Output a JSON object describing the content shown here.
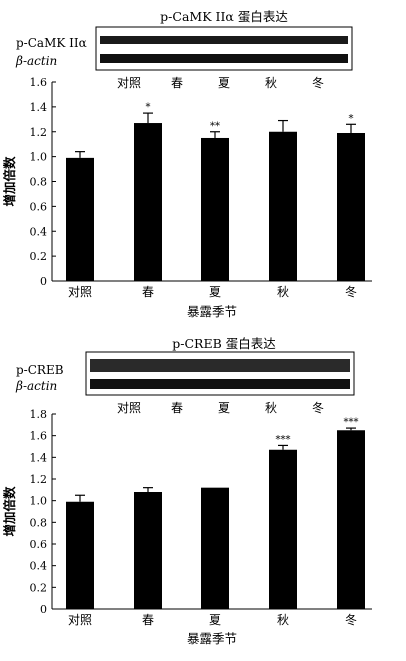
{
  "chart_data": [
    {
      "type": "bar",
      "title": "p-CaMK IIα 蛋白表达",
      "blot_labels": [
        "p-CaMK IIα",
        "β-actin"
      ],
      "blot_lane_labels": [
        "对照",
        "春",
        "夏",
        "秋",
        "冬"
      ],
      "categories": [
        "对照",
        "春",
        "夏",
        "秋",
        "冬"
      ],
      "values": [
        0.99,
        1.27,
        1.15,
        1.2,
        1.19
      ],
      "errors": [
        0.05,
        0.08,
        0.05,
        0.09,
        0.07
      ],
      "significance": [
        "",
        "*",
        "**",
        "",
        "*"
      ],
      "xlabel": "暴露季节",
      "ylabel": "增加倍数",
      "ylim": [
        0,
        1.6
      ],
      "yticks": [
        "0",
        "0.2",
        "0.4",
        "0.6",
        "0.8",
        "1.0",
        "1.2",
        "1.4",
        "1.6"
      ],
      "colors": {
        "bar": "#000000"
      },
      "grid": false
    },
    {
      "type": "bar",
      "title": "p-CREB 蛋白表达",
      "blot_labels": [
        "p-CREB",
        "β-actin"
      ],
      "blot_lane_labels": [
        "对照",
        "春",
        "夏",
        "秋",
        "冬"
      ],
      "categories": [
        "对照",
        "春",
        "夏",
        "秋",
        "冬"
      ],
      "values": [
        0.99,
        1.08,
        1.12,
        1.47,
        1.65
      ],
      "errors": [
        0.06,
        0.04,
        0.0,
        0.04,
        0.02
      ],
      "significance": [
        "",
        "",
        "",
        "***",
        "***"
      ],
      "xlabel": "暴露季节",
      "ylabel": "增加倍数",
      "ylim": [
        0,
        1.8
      ],
      "yticks": [
        "0",
        "0.2",
        "0.4",
        "0.6",
        "0.8",
        "1.0",
        "1.2",
        "1.4",
        "1.6",
        "1.8"
      ],
      "colors": {
        "bar": "#000000"
      },
      "grid": false
    }
  ]
}
